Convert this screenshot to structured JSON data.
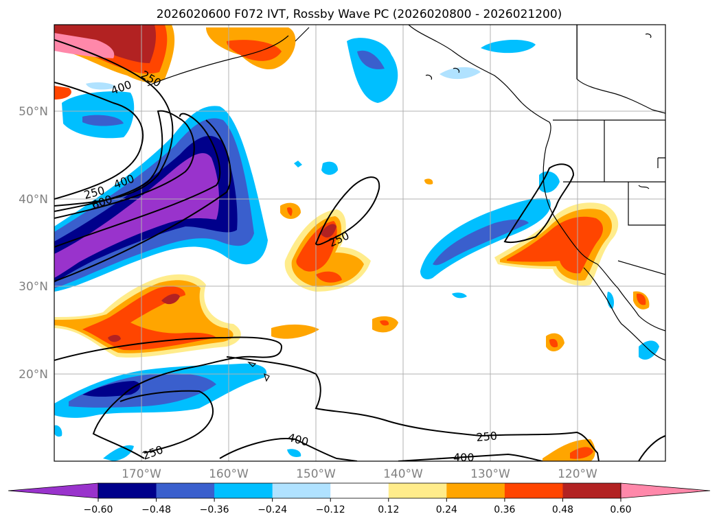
{
  "title": "2026020600 F072 IVT, Rossby Wave PC (2026020800 - 2026021200)",
  "lon_ticks": [
    "170°W",
    "160°W",
    "150°W",
    "140°W",
    "130°W",
    "120°W"
  ],
  "lat_ticks": [
    "50°N",
    "40°N",
    "30°N",
    "20°N"
  ],
  "colorbar": {
    "ticks": [
      "−0.60",
      "−0.48",
      "−0.36",
      "−0.24",
      "−0.12",
      "0.12",
      "0.24",
      "0.36",
      "0.48",
      "0.60"
    ],
    "colors": [
      "#9933cc",
      "#00008b",
      "#3a5fcd",
      "#00bfff",
      "#b0e2ff",
      "#ffffff",
      "#ffec8b",
      "#ffa500",
      "#ff4500",
      "#b22222",
      "#ff88aa"
    ]
  },
  "contour_labels": [
    "250",
    "400",
    "250",
    "400",
    "600",
    "250",
    "400",
    "250",
    "400",
    "250"
  ],
  "colors": {
    "coast": "#000000",
    "grid": "#b0b0b0",
    "contour": "#000000"
  }
}
